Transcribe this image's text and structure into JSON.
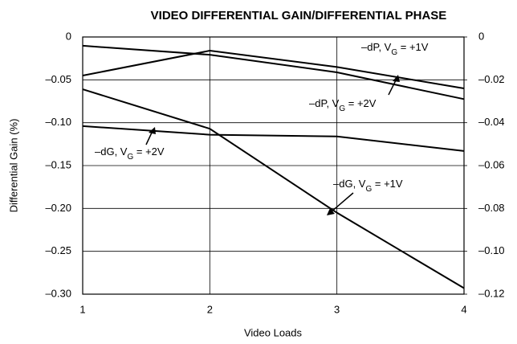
{
  "chart_data": {
    "type": "line",
    "title": "VIDEO DIFFERENTIAL GAIN/DIFFERENTIAL PHASE",
    "x_label": "Video Loads",
    "y_label": "Differential Gain (%)",
    "x": [
      1,
      2,
      3,
      4
    ],
    "xlim": [
      1,
      4
    ],
    "xticks": [
      1,
      2,
      3,
      4
    ],
    "ylim": [
      -0.3,
      0
    ],
    "yticks": [
      {
        "value": 0,
        "label": "0"
      },
      {
        "value": -0.05,
        "label": "–0.05"
      },
      {
        "value": -0.1,
        "label": "–0.10"
      },
      {
        "value": -0.15,
        "label": "–0.15"
      },
      {
        "value": -0.2,
        "label": "–0.20"
      },
      {
        "value": -0.25,
        "label": "–0.25"
      },
      {
        "value": -0.3,
        "label": "–0.30"
      }
    ],
    "y2lim": [
      -0.12,
      0
    ],
    "y2ticks": [
      {
        "value": 0,
        "label": "0"
      },
      {
        "value": -0.02,
        "label": "–0.02"
      },
      {
        "value": -0.04,
        "label": "–0.04"
      },
      {
        "value": -0.06,
        "label": "–0.06"
      },
      {
        "value": -0.08,
        "label": "–0.08"
      },
      {
        "value": -0.1,
        "label": "–0.10"
      },
      {
        "value": -0.12,
        "label": "–0.12"
      }
    ],
    "grid": true,
    "series": [
      {
        "label_parts": [
          "–dP, V",
          "G",
          " = +1V"
        ],
        "color": "#000000",
        "axis": "y2",
        "values": [
          -0.018,
          -0.0064,
          -0.014,
          -0.024
        ]
      },
      {
        "label_parts": [
          "–dP, V",
          "G",
          " = +2V"
        ],
        "color": "#000000",
        "axis": "y2",
        "values": [
          -0.0041,
          -0.0083,
          -0.0165,
          -0.029
        ]
      },
      {
        "label_parts": [
          "–dG, V",
          "G",
          " = +2V"
        ],
        "color": "#000000",
        "values": [
          -0.104,
          -0.114,
          -0.116,
          -0.133
        ]
      },
      {
        "label_parts": [
          "–dG, V",
          "G",
          " = +1V"
        ],
        "color": "#000000",
        "values": [
          -0.061,
          -0.107,
          -0.205,
          -0.293
        ]
      }
    ]
  }
}
